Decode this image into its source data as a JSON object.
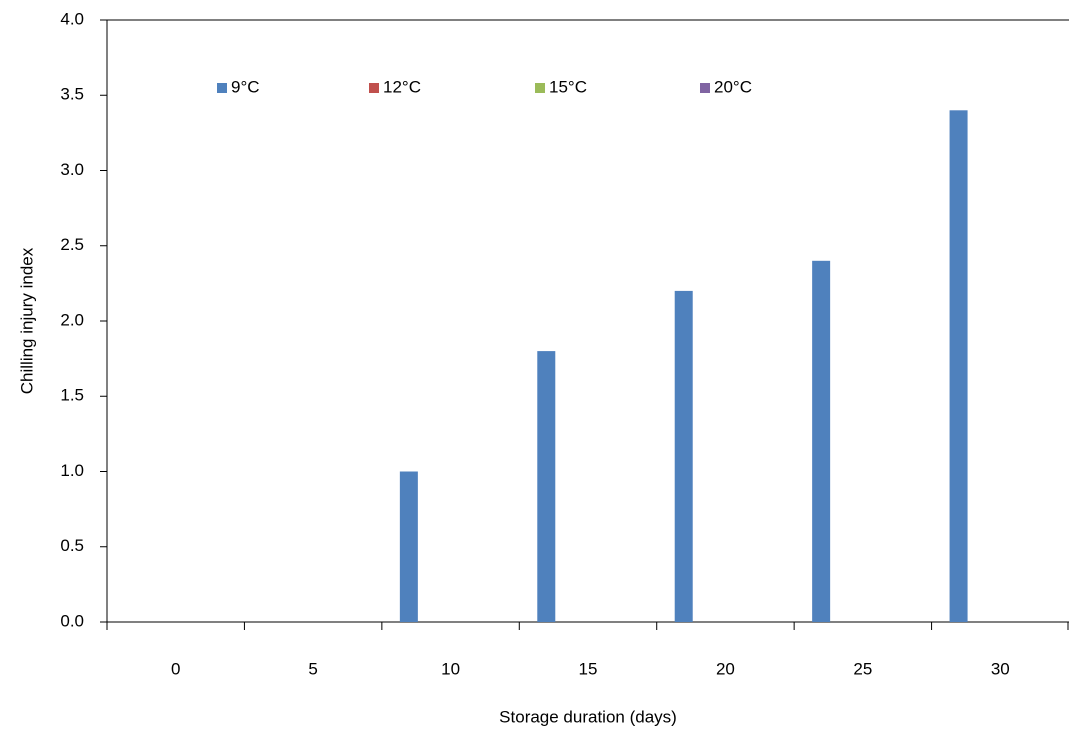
{
  "chart_data": {
    "type": "bar",
    "categories": [
      "0",
      "5",
      "10",
      "15",
      "20",
      "25",
      "30"
    ],
    "series": [
      {
        "name": "9°C",
        "color": "#4f81bd",
        "values": [
          0,
          0,
          1.0,
          1.8,
          2.2,
          2.4,
          3.4
        ]
      },
      {
        "name": "12°C",
        "color": "#c0504d",
        "values": [
          0,
          0,
          0,
          0,
          0,
          0,
          0
        ]
      },
      {
        "name": "15°C",
        "color": "#9bbb59",
        "values": [
          0,
          0,
          0,
          0,
          0,
          0,
          0
        ]
      },
      {
        "name": "20°C",
        "color": "#8064a2",
        "values": [
          0,
          0,
          0,
          0,
          0,
          0,
          0
        ]
      }
    ],
    "ylim": [
      0,
      4
    ],
    "yticks": [
      {
        "value": 0,
        "label": "0.0"
      },
      {
        "value": 0.5,
        "label": "0.5"
      },
      {
        "value": 1,
        "label": "1.0"
      },
      {
        "value": 1.5,
        "label": "1.5"
      },
      {
        "value": 2,
        "label": "2.0"
      },
      {
        "value": 2.5,
        "label": "2.5"
      },
      {
        "value": 3,
        "label": "3.0"
      },
      {
        "value": 3.5,
        "label": "3.5"
      },
      {
        "value": 4,
        "label": "4.0"
      }
    ],
    "xlabel": "Storage duration (days)",
    "ylabel": "Chilling injury index",
    "legend": "top"
  }
}
